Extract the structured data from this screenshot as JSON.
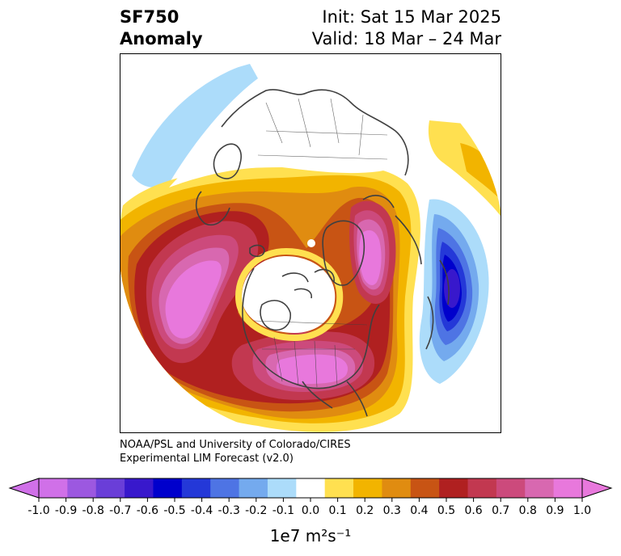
{
  "title": {
    "variable": "SF750",
    "subtitle": "Anomaly",
    "init": "Init: Sat 15 Mar 2025",
    "valid": "Valid: 18 Mar – 24 Mar"
  },
  "credit": {
    "line1": "NOAA/PSL and University of Colorado/CIRES",
    "line2": "Experimental LIM Forecast (v2.0)"
  },
  "colorbar": {
    "ticks": [
      "-1.0",
      "-0.9",
      "-0.8",
      "-0.7",
      "-0.6",
      "-0.5",
      "-0.4",
      "-0.3",
      "-0.2",
      "-0.1",
      "0.0",
      "0.1",
      "0.2",
      "0.3",
      "0.4",
      "0.5",
      "0.6",
      "0.7",
      "0.8",
      "0.9",
      "1.0"
    ],
    "colors": [
      "#d070e8",
      "#9c58e0",
      "#6a3ed8",
      "#3818cc",
      "#0000cc",
      "#2438d8",
      "#4e74e4",
      "#74aaee",
      "#acdcfa",
      "#ffffff",
      "#ffe050",
      "#f2b400",
      "#e08c10",
      "#c85414",
      "#b02020",
      "#c23850",
      "#cc4a7c",
      "#d868b0",
      "#e878dc"
    ],
    "extend_low_color": "#d070e8",
    "extend_high_color": "#e878dc",
    "unit_prefix": "1e7",
    "unit_label": "m²s⁻¹"
  },
  "map": {
    "projection": "north polar stereographic",
    "field": "streamfunction anomaly 750 hPa",
    "colors": {
      "neg_light": "#acdcfa",
      "neg_mid": "#74aaee",
      "neg_strong": "#4e74e4",
      "neg_core": "#2438d8",
      "neg_deep": "#0000cc",
      "neg_max": "#3818cc",
      "pos_01": "#ffe050",
      "pos_02": "#f2b400",
      "pos_03": "#e08c10",
      "pos_04": "#c85414",
      "pos_05": "#b02020",
      "pos_06": "#c23850",
      "pos_07": "#cc4a7c",
      "pos_08": "#d868b0",
      "pos_09": "#e878dc",
      "coast": "#404040"
    }
  }
}
